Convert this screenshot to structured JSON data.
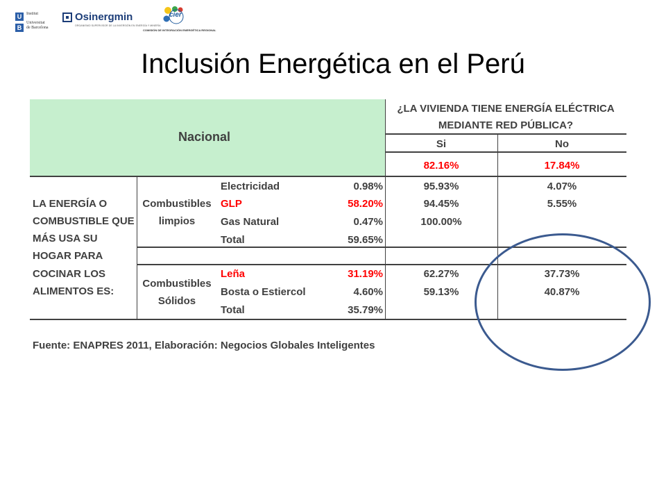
{
  "logos": {
    "ub": {
      "line1": "Institut",
      "line2": "Universitat",
      "line3": "de Barcelona",
      "blk1": "U",
      "blk2": "B"
    },
    "osinergmin": {
      "name": "Osinergmin",
      "subtitle": "ORGANISMO SUPERVISOR DE LA INVERSIÓN EN ENERGÍA Y MINERÍA"
    },
    "cier": {
      "word": "cier",
      "subtitle": "COMISIÓN DE INTEGRACIÓN ENERGÉTICA REGIONAL"
    }
  },
  "title": "Inclusión Energética en el Perú",
  "table": {
    "corner_label": "Nacional",
    "question_line1": "¿LA VIVIENDA TIENE ENERGÍA ELÉCTRICA",
    "question_line2": "MEDIANTE RED PÚBLICA?",
    "col_si": "Si",
    "col_no": "No",
    "total_si": "82.16%",
    "total_no": "17.84%",
    "row_header_lines": [
      "LA ENERGÍA O",
      "COMBUSTIBLE QUE",
      "MÁS USA SU",
      "HOGAR PARA",
      "COCINAR LOS",
      "ALIMENTOS ES:"
    ],
    "groups": [
      {
        "label_line1": "Combustibles",
        "label_line2": "limpios",
        "rows": [
          {
            "name": "Electricidad",
            "pct": "0.98%",
            "si": "95.93%",
            "no": "4.07%",
            "highlight": false
          },
          {
            "name": "GLP",
            "pct": "58.20%",
            "si": "94.45%",
            "no": "5.55%",
            "highlight": true
          },
          {
            "name": "Gas Natural",
            "pct": "0.47%",
            "si": "100.00%",
            "no": "",
            "highlight": false
          },
          {
            "name": "Total",
            "pct": "59.65%",
            "si": "",
            "no": "",
            "highlight": false
          }
        ]
      },
      {
        "label_line1": "Combustibles",
        "label_line2": "Sólidos",
        "rows": [
          {
            "name": "Leña",
            "pct": "31.19%",
            "si": "62.27%",
            "no": "37.73%",
            "highlight": true
          },
          {
            "name": "Bosta o Estiercol",
            "pct": "4.60%",
            "si": "59.13%",
            "no": "40.87%",
            "highlight": false
          },
          {
            "name": "Total",
            "pct": "35.79%",
            "si": "",
            "no": "",
            "highlight": false
          }
        ]
      }
    ]
  },
  "source": "Fuente: ENAPRES 2011, Elaboración: Negocios Globales Inteligentes",
  "colors": {
    "highlight": "#ff0000",
    "header_fill": "#c6efce",
    "oval": "#3b5a8f"
  }
}
